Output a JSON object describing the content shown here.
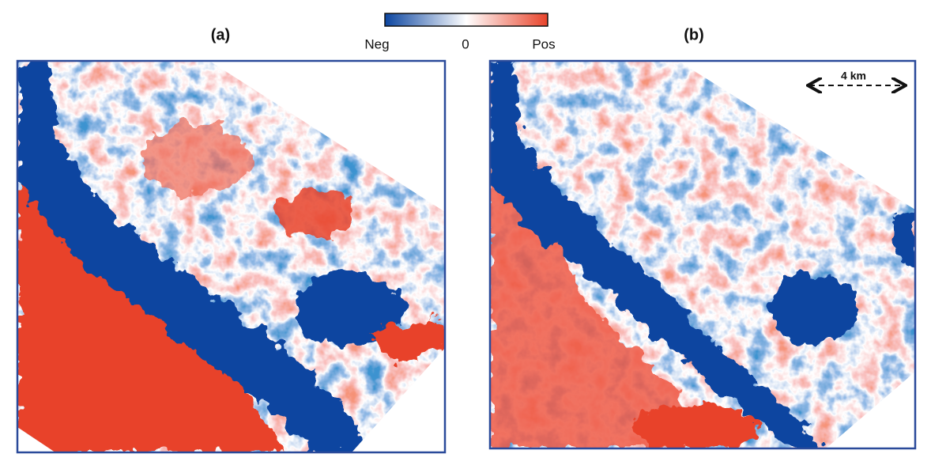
{
  "colorbar": {
    "low_label": "Neg",
    "mid_label": "0",
    "high_label": "Pos"
  },
  "panels": [
    {
      "label": "(a)"
    },
    {
      "label": "(b)",
      "scale_bar": "4 km"
    }
  ]
}
